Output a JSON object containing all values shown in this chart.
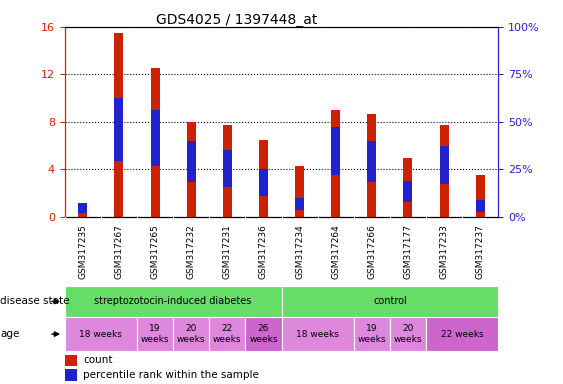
{
  "title": "GDS4025 / 1397448_at",
  "samples": [
    "GSM317235",
    "GSM317267",
    "GSM317265",
    "GSM317232",
    "GSM317231",
    "GSM317236",
    "GSM317234",
    "GSM317264",
    "GSM317266",
    "GSM317177",
    "GSM317233",
    "GSM317237"
  ],
  "count_values": [
    1.0,
    15.5,
    12.5,
    8.0,
    7.7,
    6.5,
    4.3,
    9.0,
    8.7,
    5.0,
    7.7,
    3.5
  ],
  "percentile_values": [
    0.6,
    5.0,
    4.5,
    3.2,
    2.8,
    2.0,
    0.8,
    3.8,
    3.2,
    1.5,
    3.0,
    0.7
  ],
  "ylim": [
    0,
    16
  ],
  "y2lim": [
    0,
    100
  ],
  "yticks": [
    0,
    4,
    8,
    12,
    16
  ],
  "y2ticks": [
    0,
    25,
    50,
    75,
    100
  ],
  "bar_color": "#CC2200",
  "percentile_color": "#2222CC",
  "bg_color": "#FFFFFF",
  "tick_label_color_left": "#CC2200",
  "tick_label_color_right": "#2222CC",
  "grid_color": "#000000",
  "gray_color": "#CCCCCC",
  "green_color": "#66DD66",
  "purple_light": "#DD88DD",
  "purple_dark": "#CC66CC",
  "disease_groups": [
    {
      "label": "streptozotocin-induced diabetes",
      "start": 0,
      "end": 6
    },
    {
      "label": "control",
      "start": 6,
      "end": 12
    }
  ],
  "age_groups": [
    {
      "label": "18 weeks",
      "start": 0,
      "end": 2,
      "dark": false
    },
    {
      "label": "19\nweeks",
      "start": 2,
      "end": 3,
      "dark": false
    },
    {
      "label": "20\nweeks",
      "start": 3,
      "end": 4,
      "dark": false
    },
    {
      "label": "22\nweeks",
      "start": 4,
      "end": 5,
      "dark": false
    },
    {
      "label": "26\nweeks",
      "start": 5,
      "end": 6,
      "dark": true
    },
    {
      "label": "18 weeks",
      "start": 6,
      "end": 8,
      "dark": false
    },
    {
      "label": "19\nweeks",
      "start": 8,
      "end": 9,
      "dark": false
    },
    {
      "label": "20\nweeks",
      "start": 9,
      "end": 10,
      "dark": false
    },
    {
      "label": "22 weeks",
      "start": 10,
      "end": 12,
      "dark": true
    }
  ]
}
